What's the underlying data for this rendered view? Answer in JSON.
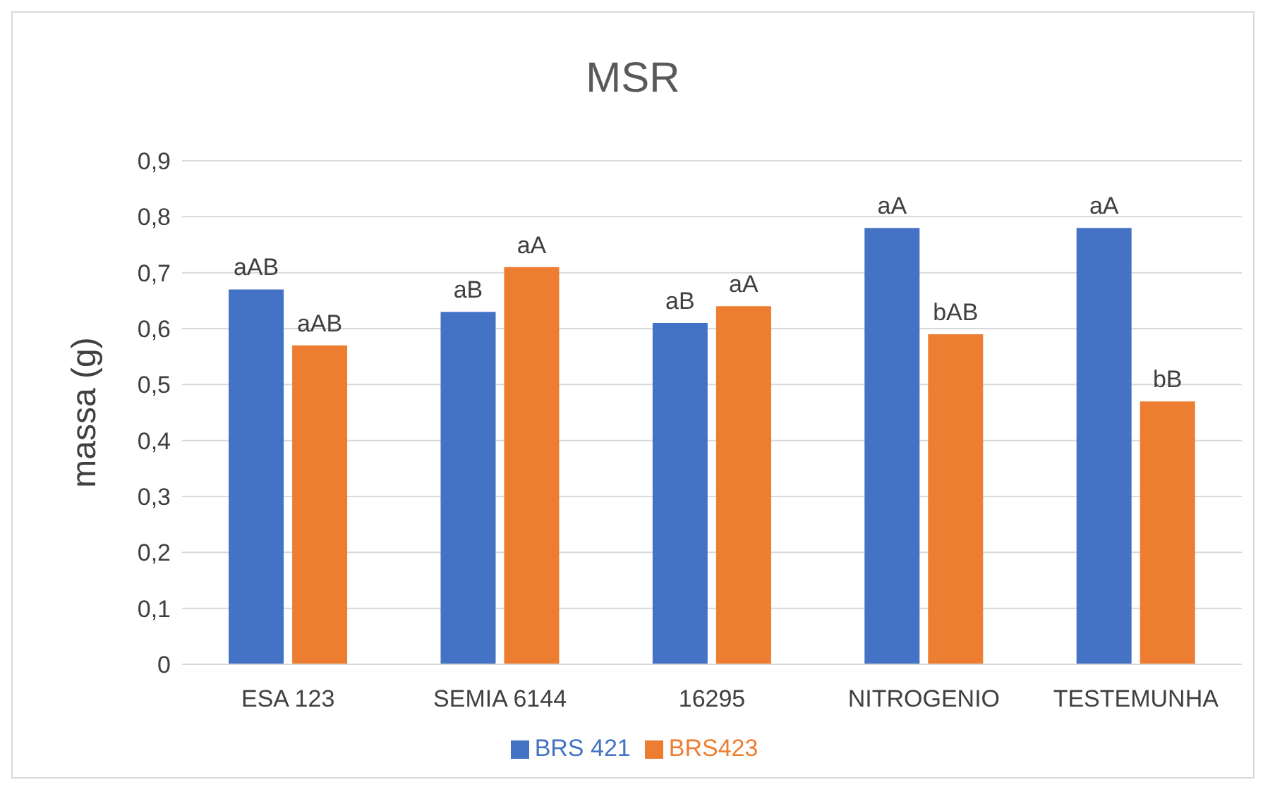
{
  "chart_data": {
    "type": "bar",
    "title": "MSR",
    "ylabel": "massa (g)",
    "categories": [
      "ESA 123",
      "SEMIA 6144",
      "16295",
      "NITROGENIO",
      "TESTEMUNHA"
    ],
    "series": [
      {
        "name": "BRS 421",
        "color": "#4472c4",
        "values": [
          0.67,
          0.63,
          0.61,
          0.78,
          0.78
        ],
        "value_labels": [
          "aAB",
          "aB",
          "aB",
          "aA",
          "aA"
        ]
      },
      {
        "name": "BRS423",
        "color": "#ed7d31",
        "values": [
          0.57,
          0.71,
          0.64,
          0.59,
          0.47
        ],
        "value_labels": [
          "aAB",
          "aA",
          "aA",
          "bAB",
          "bB"
        ]
      }
    ],
    "ylim": [
      0,
      0.9
    ],
    "yticks": [
      0,
      {
        "value": 0.1,
        "label": "0,1"
      },
      {
        "value": 0.2,
        "label": "0,2"
      },
      {
        "value": 0.3,
        "label": "0,3"
      },
      {
        "value": 0.4,
        "label": "0,4"
      },
      {
        "value": 0.5,
        "label": "0,5"
      },
      {
        "value": 0.6,
        "label": "0,6"
      },
      {
        "value": 0.7,
        "label": "0,7"
      },
      {
        "value": 0.8,
        "label": "0,8"
      },
      {
        "value": 0.9,
        "label": "0,9"
      }
    ],
    "grid": "y",
    "legend": "bottom"
  }
}
